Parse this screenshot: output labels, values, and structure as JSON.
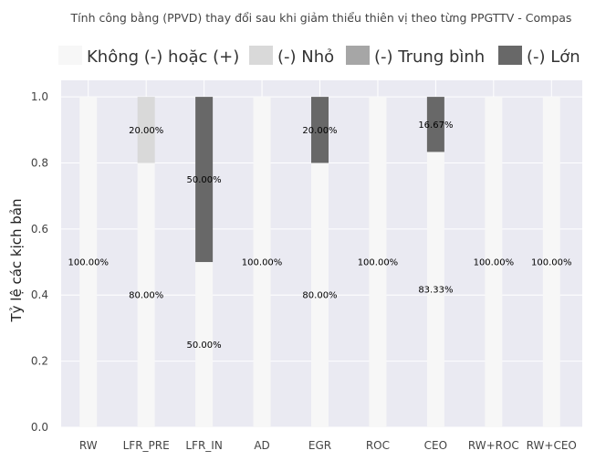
{
  "chart_data": {
    "type": "bar",
    "stacked": true,
    "title": "Tính công bằng (PPVD) thay đổi sau khi giảm thiểu thiên vị theo từng PPGTTV - Compas",
    "ylabel": "Tỷ lệ các kịch bản",
    "xlabel": "",
    "ylim": [
      0,
      1.05
    ],
    "yticks": [
      "0.0",
      "0.2",
      "0.4",
      "0.6",
      "0.8",
      "1.0"
    ],
    "grid": true,
    "legend_position": "top",
    "categories": [
      "RW",
      "LFR_PRE",
      "LFR_IN",
      "AD",
      "EGR",
      "ROC",
      "CEO",
      "RW+ROC",
      "RW+CEO"
    ],
    "series": [
      {
        "name": "Không (-) hoặc (+)",
        "color": "#f7f7f7",
        "values": [
          1.0,
          0.8,
          0.5,
          1.0,
          0.8,
          1.0,
          0.8333,
          1.0,
          1.0
        ],
        "labels": [
          "100.00%",
          "80.00%",
          "50.00%",
          "100.00%",
          "80.00%",
          "100.00%",
          "83.33%",
          "100.00%",
          "100.00%"
        ]
      },
      {
        "name": "(-) Nhỏ",
        "color": "#d9d9d9",
        "values": [
          0,
          0.2,
          0,
          0,
          0,
          0,
          0,
          0,
          0
        ],
        "labels": [
          "",
          "20.00%",
          "",
          "",
          "",
          "",
          "",
          "",
          ""
        ]
      },
      {
        "name": "(-) Trung bình",
        "color": "#a6a6a6",
        "values": [
          0,
          0,
          0,
          0,
          0,
          0,
          0,
          0,
          0
        ],
        "labels": [
          "",
          "",
          "",
          "",
          "",
          "",
          "",
          "",
          ""
        ]
      },
      {
        "name": "(-) Lớn",
        "color": "#686868",
        "values": [
          0,
          0,
          0.5,
          0,
          0.2,
          0,
          0.1667,
          0,
          0
        ],
        "labels": [
          "",
          "",
          "50.00%",
          "",
          "20.00%",
          "",
          "16.67%",
          "",
          ""
        ]
      }
    ]
  }
}
